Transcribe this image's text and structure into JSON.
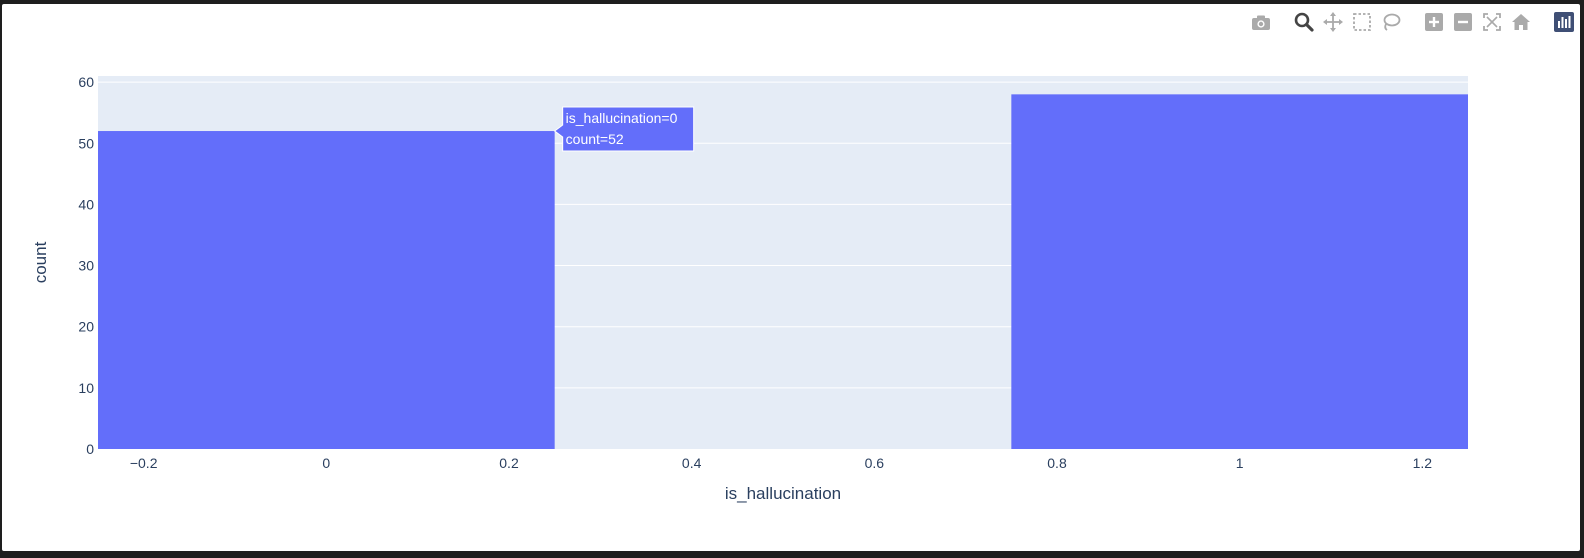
{
  "modebar": {
    "buttons": [
      {
        "name": "camera-icon",
        "title": "Download plot as a png",
        "group": 0
      },
      {
        "name": "zoom-icon",
        "title": "Zoom",
        "group": 1,
        "active": true
      },
      {
        "name": "pan-icon",
        "title": "Pan",
        "group": 1
      },
      {
        "name": "box-select-icon",
        "title": "Box Select",
        "group": 1
      },
      {
        "name": "lasso-select-icon",
        "title": "Lasso Select",
        "group": 1
      },
      {
        "name": "zoom-in-icon",
        "title": "Zoom in",
        "group": 2
      },
      {
        "name": "zoom-out-icon",
        "title": "Zoom out",
        "group": 2
      },
      {
        "name": "autoscale-icon",
        "title": "Autoscale",
        "group": 2
      },
      {
        "name": "home-icon",
        "title": "Reset axes",
        "group": 2
      },
      {
        "name": "plotly-logo-icon",
        "title": "Produced with Plotly",
        "group": 3
      }
    ],
    "icon_color": "#aaaaaa",
    "active_color": "#444444",
    "logo_color": "#3f4f75"
  },
  "colors": {
    "plot_bg": "#e5ecf6",
    "grid": "#ffffff",
    "bar": "#636efa",
    "text": "#2a3f5f"
  },
  "chart_data": {
    "type": "bar",
    "xlabel": "is_hallucination",
    "ylabel": "count",
    "xlim": [
      -0.25,
      1.25
    ],
    "ylim": [
      0,
      61
    ],
    "xticks": [
      -0.2,
      0,
      0.2,
      0.4,
      0.6,
      0.8,
      1,
      1.2
    ],
    "xtick_labels": [
      "−0.2",
      "0",
      "0.2",
      "0.4",
      "0.6",
      "0.8",
      "1",
      "1.2"
    ],
    "yticks": [
      0,
      10,
      20,
      30,
      40,
      50,
      60
    ],
    "ytick_labels": [
      "0",
      "10",
      "20",
      "30",
      "40",
      "50",
      "60"
    ],
    "bars": [
      {
        "x0": -0.25,
        "x1": 0.25,
        "value": 52,
        "category": 0
      },
      {
        "x0": 0.75,
        "x1": 1.25,
        "value": 58,
        "category": 1
      }
    ],
    "grid": true,
    "tooltip": {
      "lines": [
        "is_hallucination=0",
        "count=52"
      ],
      "bar_index": 0
    }
  }
}
